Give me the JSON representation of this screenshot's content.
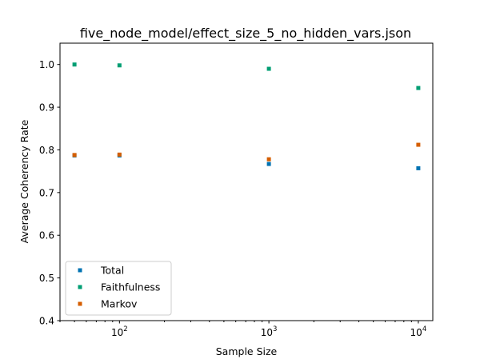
{
  "chart_data": {
    "type": "scatter",
    "title": "five_node_model/effect_size_5_no_hidden_vars.json",
    "xlabel": "Sample Size",
    "ylabel": "Average Coherency Rate",
    "xscale": "log",
    "xlim": [
      40,
      12500
    ],
    "ylim": [
      0.4,
      1.05
    ],
    "x_major_ticks": [
      {
        "value": 100,
        "base": "10",
        "exp": "2"
      },
      {
        "value": 1000,
        "base": "10",
        "exp": "3"
      },
      {
        "value": 10000,
        "base": "10",
        "exp": "4"
      }
    ],
    "x_minor_ticks": [
      40,
      50,
      60,
      70,
      80,
      90,
      200,
      300,
      400,
      500,
      600,
      700,
      800,
      900,
      2000,
      3000,
      4000,
      5000,
      6000,
      7000,
      8000,
      9000
    ],
    "y_ticks": [
      {
        "value": 0.4,
        "label": "0.4"
      },
      {
        "value": 0.5,
        "label": "0.5"
      },
      {
        "value": 0.6,
        "label": "0.6"
      },
      {
        "value": 0.7,
        "label": "0.7"
      },
      {
        "value": 0.8,
        "label": "0.8"
      },
      {
        "value": 0.9,
        "label": "0.9"
      },
      {
        "value": 1.0,
        "label": "1.0"
      }
    ],
    "grid": false,
    "legend_position": "lower-left",
    "series": [
      {
        "name": "Total",
        "color": "#0072b2",
        "marker": "square",
        "points": [
          {
            "x": 50,
            "y": 0.787
          },
          {
            "x": 100,
            "y": 0.787
          },
          {
            "x": 1000,
            "y": 0.767
          },
          {
            "x": 10000,
            "y": 0.757
          }
        ]
      },
      {
        "name": "Faithfulness",
        "color": "#009e73",
        "marker": "square",
        "points": [
          {
            "x": 50,
            "y": 1.0
          },
          {
            "x": 100,
            "y": 0.998
          },
          {
            "x": 1000,
            "y": 0.99
          },
          {
            "x": 10000,
            "y": 0.945
          }
        ]
      },
      {
        "name": "Markov",
        "color": "#d55e00",
        "marker": "square",
        "points": [
          {
            "x": 50,
            "y": 0.788
          },
          {
            "x": 100,
            "y": 0.789
          },
          {
            "x": 1000,
            "y": 0.778
          },
          {
            "x": 10000,
            "y": 0.812
          }
        ]
      }
    ]
  }
}
